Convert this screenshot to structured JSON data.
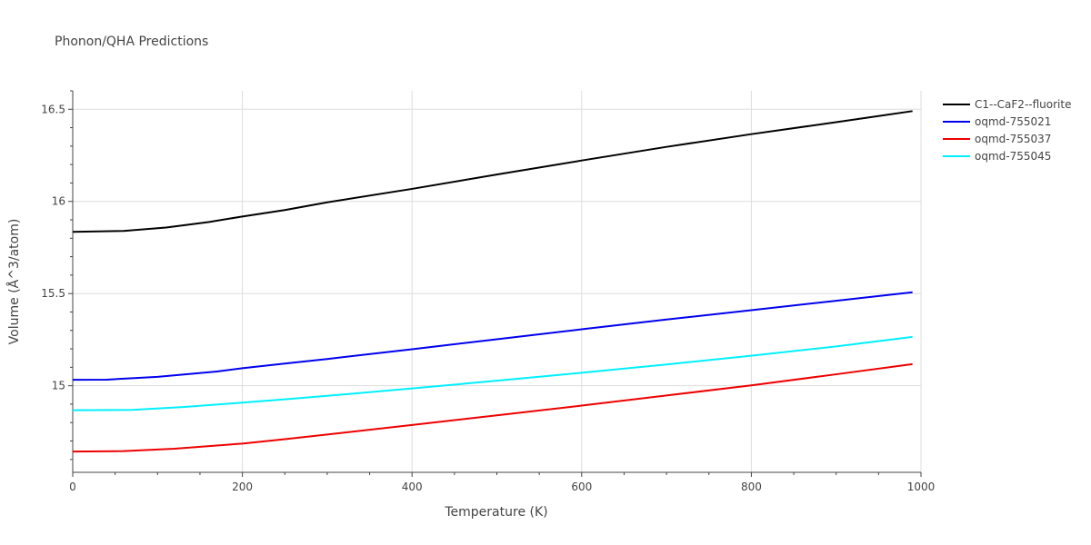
{
  "chart_data": {
    "type": "line",
    "title": "Phonon/QHA Predictions",
    "xlabel": "Temperature (K)",
    "ylabel": "Volume (Å^3/atom)",
    "xlim": [
      0,
      1000
    ],
    "ylim": [
      14.53,
      16.6
    ],
    "x_ticks": [
      0,
      200,
      400,
      600,
      800,
      1000
    ],
    "x_tick_labels": [
      "0",
      "200",
      "400",
      "600",
      "800",
      "1000"
    ],
    "y_ticks": [
      15,
      15.5,
      16,
      16.5
    ],
    "y_tick_labels": [
      "15",
      "15.5",
      "16",
      "16.5"
    ],
    "grid": true,
    "legend_position": "top-right",
    "series": [
      {
        "name": "C1--CaF2--fluorite",
        "color": "#000000",
        "x": [
          0,
          60,
          110,
          160,
          200,
          250,
          300,
          400,
          500,
          600,
          700,
          800,
          900,
          990
        ],
        "y": [
          15.835,
          15.84,
          15.858,
          15.888,
          15.918,
          15.953,
          15.995,
          16.068,
          16.146,
          16.222,
          16.296,
          16.365,
          16.43,
          16.49
        ]
      },
      {
        "name": "oqmd-755021",
        "color": "#0000ee",
        "x": [
          0,
          40,
          100,
          170,
          200,
          250,
          300,
          400,
          500,
          600,
          700,
          800,
          900,
          990
        ],
        "y": [
          15.032,
          15.033,
          15.048,
          15.077,
          15.095,
          15.12,
          15.145,
          15.198,
          15.252,
          15.306,
          15.359,
          15.41,
          15.461,
          15.507
        ]
      },
      {
        "name": "oqmd-755037",
        "color": "#ee0000",
        "x": [
          0,
          60,
          120,
          200,
          250,
          300,
          400,
          500,
          600,
          700,
          800,
          900,
          990
        ],
        "y": [
          14.643,
          14.645,
          14.658,
          14.686,
          14.71,
          14.735,
          14.787,
          14.839,
          14.892,
          14.947,
          15.002,
          15.062,
          15.117
        ]
      },
      {
        "name": "oqmd-755045",
        "color": "#00f0ff",
        "x": [
          0,
          70,
          130,
          200,
          250,
          300,
          400,
          500,
          600,
          700,
          800,
          900,
          990
        ],
        "y": [
          14.867,
          14.869,
          14.884,
          14.908,
          14.926,
          14.945,
          14.985,
          15.027,
          15.07,
          15.115,
          15.163,
          15.213,
          15.265
        ]
      }
    ]
  }
}
